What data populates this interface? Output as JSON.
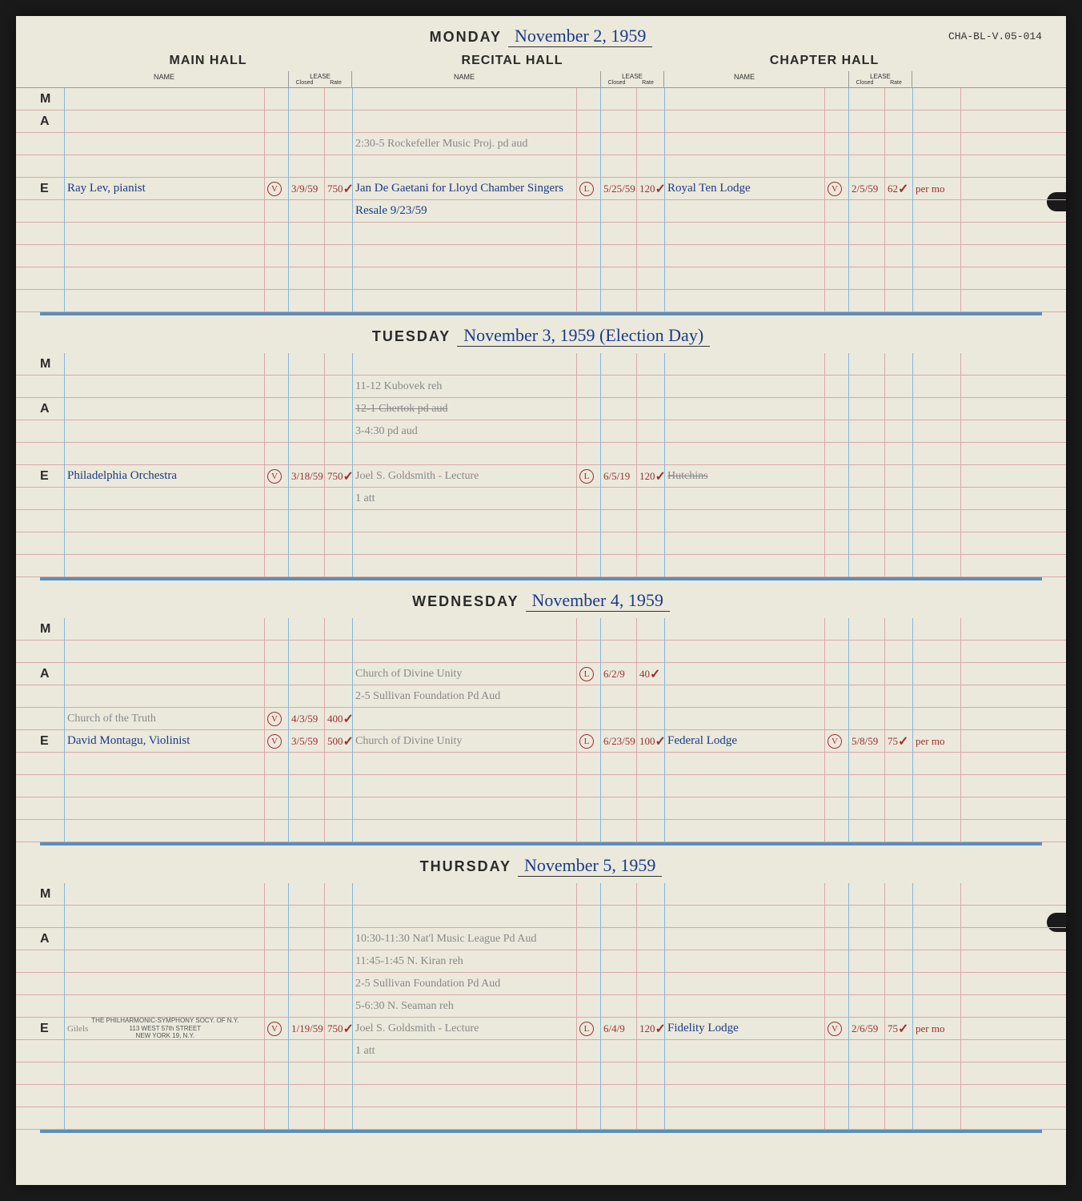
{
  "archive_id": "CHA-BL-V.05-014",
  "halls": {
    "main": "MAIN HALL",
    "recital": "RECITAL HALL",
    "chapter": "CHAPTER HALL"
  },
  "col_labels": {
    "name": "NAME",
    "lease": "LEASE",
    "closed": "Closed",
    "rate": "Rate"
  },
  "periods": {
    "m": "M",
    "a": "A",
    "e": "E"
  },
  "days": [
    {
      "day_name": "MONDAY",
      "date": "November 2, 1959",
      "rows": {
        "m": [
          {}
        ],
        "a": [
          {},
          {
            "recital_name": "2:30-5 Rockefeller Music Proj. pd aud",
            "recital_style": "pencil"
          },
          {}
        ],
        "e": [
          {
            "main_name": "Ray Lev, pianist",
            "main_style": "blue",
            "main_check": "V",
            "main_closed": "3/9/59",
            "main_rate": "750",
            "main_tick": true,
            "recital_name": "Jan De Gaetani for Lloyd Chamber Singers",
            "recital_style": "blue",
            "recital_check": "L",
            "recital_closed": "5/25/59",
            "recital_rate": "120",
            "recital_tick": true,
            "chapter_name": "Royal Ten Lodge",
            "chapter_style": "blue",
            "chapter_check": "V",
            "chapter_closed": "2/5/59",
            "chapter_rate": "62",
            "chapter_note": "per mo",
            "chapter_tick": true
          },
          {
            "recital_name": "Resale 9/23/59",
            "recital_style": "blue"
          },
          {},
          {},
          {},
          {}
        ]
      }
    },
    {
      "day_name": "TUESDAY",
      "date": "November 3, 1959 (Election Day)",
      "rows": {
        "m": [
          {},
          {
            "recital_name": "11-12 Kubovek reh",
            "recital_style": "pencil"
          }
        ],
        "a": [
          {
            "recital_name": "12-1 Chertok pd aud",
            "recital_style": "pencil",
            "strike": true
          },
          {
            "recital_name": "3-4:30 pd aud",
            "recital_style": "pencil"
          },
          {}
        ],
        "e": [
          {
            "main_name": "Philadelphia Orchestra",
            "main_style": "blue",
            "main_check": "V",
            "main_closed": "3/18/59",
            "main_rate": "750",
            "main_tick": true,
            "recital_name": "Joel S. Goldsmith - Lecture",
            "recital_style": "pencil",
            "recital_check": "L",
            "recital_closed": "6/5/19",
            "recital_rate": "120",
            "recital_tick": true,
            "chapter_name": "Hutchins",
            "chapter_style": "pencil",
            "chapter_strike": true
          },
          {
            "recital_name": "1 att",
            "recital_style": "pencil"
          },
          {},
          {},
          {}
        ]
      }
    },
    {
      "day_name": "WEDNESDAY",
      "date": "November 4, 1959",
      "rows": {
        "m": [
          {},
          {}
        ],
        "a": [
          {
            "recital_name": "Church of Divine Unity",
            "recital_style": "pencil",
            "recital_check": "L",
            "recital_closed": "6/2/9",
            "recital_rate": "40",
            "recital_tick": true
          },
          {
            "recital_name": "2-5 Sullivan Foundation Pd Aud",
            "recital_style": "pencil"
          },
          {
            "main_name": "Church of the Truth",
            "main_style": "pencil",
            "main_check": "V",
            "main_closed": "4/3/59",
            "main_rate": "400",
            "main_tick": true
          }
        ],
        "e": [
          {
            "main_name": "David Montagu, Violinist",
            "main_style": "blue",
            "main_check": "V",
            "main_closed": "3/5/59",
            "main_rate": "500",
            "main_tick": true,
            "recital_name": "Church of Divine Unity",
            "recital_style": "pencil",
            "recital_check": "L",
            "recital_closed": "6/23/59",
            "recital_rate": "100",
            "recital_tick": true,
            "chapter_name": "Federal Lodge",
            "chapter_style": "blue",
            "chapter_check": "V",
            "chapter_closed": "5/8/59",
            "chapter_rate": "75",
            "chapter_note": "per mo",
            "chapter_tick": true
          },
          {},
          {},
          {},
          {}
        ]
      }
    },
    {
      "day_name": "THURSDAY",
      "date": "November 5, 1959",
      "rows": {
        "m": [
          {},
          {}
        ],
        "a": [
          {
            "recital_name": "10:30-11:30 Nat'l Music League Pd Aud",
            "recital_style": "pencil"
          },
          {
            "recital_name": "11:45-1:45 N. Kiran reh",
            "recital_style": "pencil"
          },
          {
            "recital_name": "2-5 Sullivan Foundation Pd Aud",
            "recital_style": "pencil"
          },
          {
            "recital_name": "5-6:30 N. Seaman reh",
            "recital_style": "pencil"
          }
        ],
        "e": [
          {
            "main_name": "Gilels",
            "main_style": "pencil",
            "main_stamp": "THE PHILHARMONIC-SYMPHONY SOCY. OF N.Y.\n113 WEST 57th STREET\nNEW YORK 19, N.Y.",
            "main_check": "V",
            "main_closed": "1/19/59",
            "main_rate": "750",
            "main_tick": true,
            "recital_name": "Joel S. Goldsmith - Lecture",
            "recital_style": "pencil",
            "recital_check": "L",
            "recital_closed": "6/4/9",
            "recital_rate": "120",
            "recital_tick": true,
            "chapter_name": "Fidelity Lodge",
            "chapter_style": "blue",
            "chapter_check": "V",
            "chapter_closed": "2/6/59",
            "chapter_rate": "75",
            "chapter_note": "per mo",
            "chapter_tick": true
          },
          {
            "recital_name": "1 att",
            "recital_style": "pencil"
          },
          {},
          {},
          {}
        ]
      }
    }
  ],
  "colors": {
    "page_bg": "#ebe9dc",
    "ink_blue": "#1a3a8a",
    "ink_pencil": "#888888",
    "ink_red": "#a03030",
    "rule_pink": "#d8a8a8",
    "rule_blue": "#8ab5d6"
  }
}
